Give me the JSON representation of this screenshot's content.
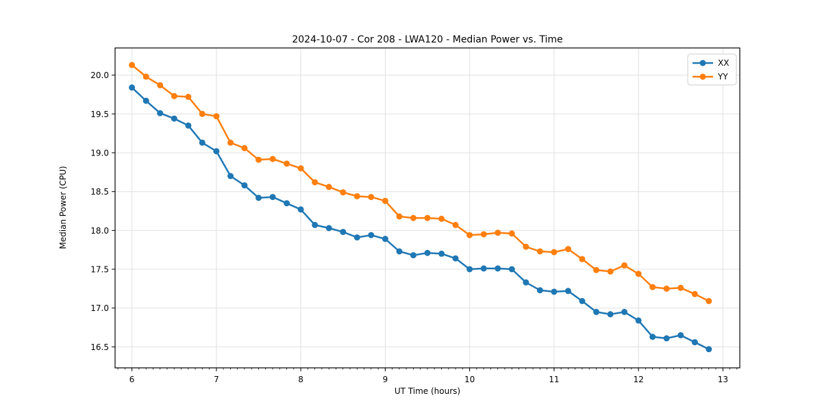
{
  "chart_data": {
    "type": "line",
    "title": "2024-10-07 - Cor 208 - LWA120 - Median Power vs. Time",
    "xlabel": "UT Time (hours)",
    "ylabel": "Median Power (CPU)",
    "xlim": [
      5.8,
      13.2
    ],
    "ylim": [
      16.23,
      20.35
    ],
    "x_ticks": [
      6,
      7,
      8,
      9,
      10,
      11,
      12,
      13
    ],
    "y_ticks": [
      16.5,
      17.0,
      17.5,
      18.0,
      18.5,
      19.0,
      19.5,
      20.0
    ],
    "x_minor_tick_step": 0.08333,
    "grid": true,
    "legend_position": "upper right",
    "marker": "circle",
    "x": [
      6.0,
      6.167,
      6.333,
      6.5,
      6.667,
      6.833,
      7.0,
      7.167,
      7.333,
      7.5,
      7.667,
      7.833,
      8.0,
      8.167,
      8.333,
      8.5,
      8.667,
      8.833,
      9.0,
      9.167,
      9.333,
      9.5,
      9.667,
      9.833,
      10.0,
      10.167,
      10.333,
      10.5,
      10.667,
      10.833,
      11.0,
      11.167,
      11.333,
      11.5,
      11.667,
      11.833,
      12.0,
      12.167,
      12.333,
      12.5,
      12.667,
      12.833
    ],
    "series": [
      {
        "name": "XX",
        "color": "#1f77b4",
        "values": [
          19.84,
          19.67,
          19.51,
          19.44,
          19.35,
          19.13,
          19.02,
          18.7,
          18.58,
          18.42,
          18.43,
          18.35,
          18.27,
          18.07,
          18.03,
          17.98,
          17.91,
          17.94,
          17.89,
          17.73,
          17.68,
          17.71,
          17.7,
          17.64,
          17.5,
          17.51,
          17.51,
          17.5,
          17.33,
          17.23,
          17.21,
          17.22,
          17.09,
          16.95,
          16.92,
          16.95,
          16.84,
          16.63,
          16.61,
          16.65,
          16.56,
          16.47
        ]
      },
      {
        "name": "YY",
        "color": "#ff7f0e",
        "values": [
          20.13,
          19.98,
          19.87,
          19.73,
          19.72,
          19.5,
          19.47,
          19.13,
          19.06,
          18.91,
          18.92,
          18.86,
          18.8,
          18.62,
          18.56,
          18.49,
          18.44,
          18.43,
          18.38,
          18.18,
          18.16,
          18.16,
          18.15,
          18.07,
          17.94,
          17.95,
          17.97,
          17.96,
          17.79,
          17.73,
          17.72,
          17.76,
          17.63,
          17.49,
          17.47,
          17.55,
          17.44,
          17.27,
          17.25,
          17.26,
          17.18,
          17.09
        ]
      }
    ]
  },
  "style": {
    "grid_color": "#e0e0e0",
    "spine_color": "#000000",
    "legend_border_color": "#cccccc",
    "background": "#ffffff"
  }
}
